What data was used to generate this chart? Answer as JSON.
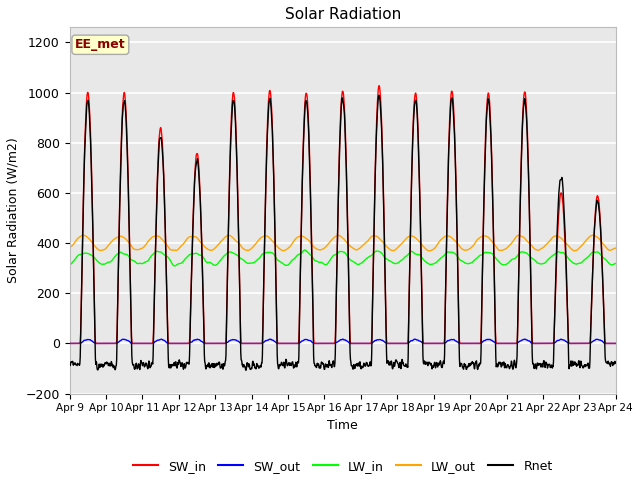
{
  "title": "Solar Radiation",
  "xlabel": "Time",
  "ylabel": "Solar Radiation (W/m2)",
  "ylim": [
    -200,
    1260
  ],
  "yticks": [
    -200,
    0,
    200,
    400,
    600,
    800,
    1000,
    1200
  ],
  "x_tick_labels": [
    "Apr 9",
    "Apr 10",
    "Apr 11",
    "Apr 12",
    "Apr 13",
    "Apr 14",
    "Apr 15",
    "Apr 16",
    "Apr 17",
    "Apr 18",
    "Apr 19",
    "Apr 20",
    "Apr 21",
    "Apr 22",
    "Apr 23",
    "Apr 24"
  ],
  "legend_labels": [
    "SW_in",
    "SW_out",
    "LW_in",
    "LW_out",
    "Rnet"
  ],
  "annotation_text": "EE_met",
  "annotation_color": "#8B0000",
  "annotation_bg": "#FFFFCC",
  "plot_bg": "#E8E8E8",
  "total_days": 15,
  "dt_hours": 0.25
}
